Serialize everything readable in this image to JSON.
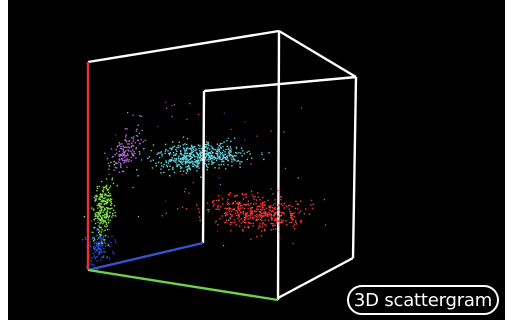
{
  "label": "3D scattergram",
  "colors": {
    "background": "#000000",
    "box_edge": "#ffffff",
    "axis_x": "#6fd14b",
    "axis_y": "#e8342a",
    "axis_z": "#3552c9"
  },
  "clusters": [
    {
      "name": "cyan",
      "color": "#5fd6e0"
    },
    {
      "name": "red",
      "color": "#ff3838"
    },
    {
      "name": "green",
      "color": "#7fe04a"
    },
    {
      "name": "purple",
      "color": "#b56ad8"
    },
    {
      "name": "blue",
      "color": "#2a4fe0"
    }
  ]
}
